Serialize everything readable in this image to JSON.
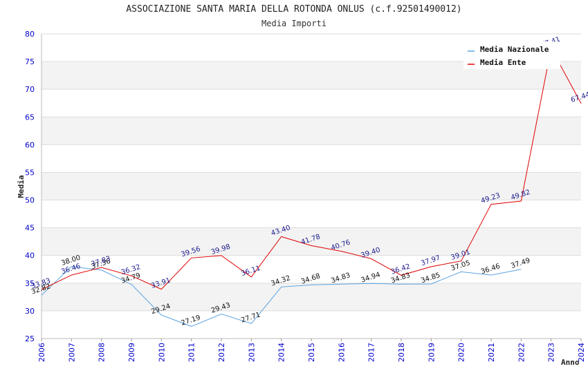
{
  "chart_data": {
    "type": "line",
    "title": "ASSOCIAZIONE SANTA MARIA DELLA ROTONDA ONLUS (c.f.92501490012)",
    "subtitle": "Media Importi",
    "xlabel": "Anno",
    "ylabel": "Media",
    "ylim": [
      25,
      80
    ],
    "y_ticks": [
      "25",
      "30",
      "35",
      "40",
      "45",
      "50",
      "55",
      "60",
      "65",
      "70",
      "75",
      "80"
    ],
    "categories": [
      "2006",
      "2007",
      "2008",
      "2009",
      "2010",
      "2011",
      "2012",
      "2013",
      "2014",
      "2015",
      "2016",
      "2017",
      "2018",
      "2019",
      "2020",
      "2021",
      "2022",
      "2023",
      "2024"
    ],
    "grid": "horizontal, alternating bands",
    "legend_position": "top-right",
    "series": [
      {
        "name": "Media Nazionale",
        "color": "#5aa2e0",
        "values": [
          32.82,
          38.0,
          37.36,
          34.79,
          29.24,
          27.19,
          29.43,
          27.71,
          34.32,
          34.68,
          34.83,
          34.94,
          34.83,
          34.85,
          37.05,
          36.46,
          37.49,
          null,
          null
        ],
        "labels": [
          "32.82",
          "38.00",
          "37.36",
          "34.79",
          "29.24",
          "27.19",
          "29.43",
          "27.71",
          "34.32",
          "34.68",
          "34.83",
          "34.94",
          "34.83",
          "34.85",
          "37.05",
          "36.46",
          "37.49",
          "",
          ""
        ]
      },
      {
        "name": "Media Ente",
        "color": "#e00000",
        "values": [
          33.83,
          36.46,
          37.83,
          36.32,
          33.91,
          39.56,
          39.98,
          36.11,
          43.4,
          41.78,
          40.76,
          39.4,
          36.42,
          37.97,
          39.01,
          49.23,
          49.82,
          77.41,
          67.44
        ],
        "labels": [
          "33.83",
          "36.46",
          "37.83",
          "36.32",
          "33.91",
          "39.56",
          "39.98",
          "36.11",
          "43.40",
          "41.78",
          "40.76",
          "39.40",
          "36.42",
          "37.97",
          "39.01",
          "49.23",
          "49.82",
          "77.41",
          "67.44"
        ]
      }
    ]
  }
}
